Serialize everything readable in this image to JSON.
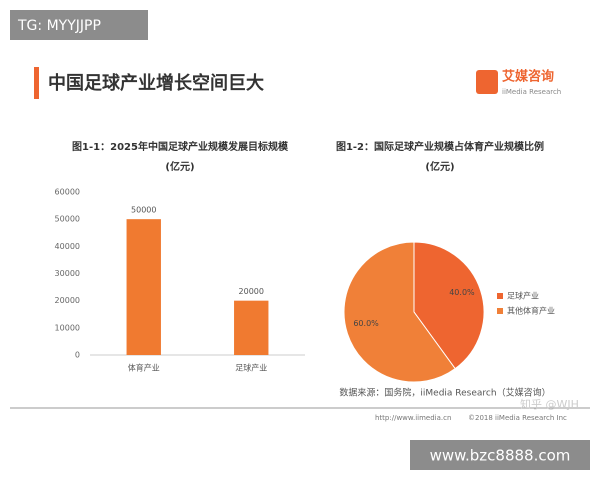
{
  "header": {
    "watermark": "TG: MYYJJPP",
    "title": "中国足球产业增长空间巨大",
    "logo_cn": "艾媒咨询",
    "logo_en": "iiMedia Research"
  },
  "chart_data": [
    {
      "type": "bar",
      "title": "图1-1：2025年中国足球产业规模发展目标规模",
      "subtitle": "(亿元)",
      "categories": [
        "体育产业",
        "足球产业"
      ],
      "values": [
        50000,
        20000
      ],
      "color": "#f07a30",
      "ylim": [
        0,
        60000
      ],
      "yticks": [
        0,
        10000,
        20000,
        30000,
        40000,
        50000,
        60000
      ],
      "grid": false
    },
    {
      "type": "pie",
      "title": "图1-2：国际足球产业规模占体育产业规模比例",
      "subtitle": "(亿元)",
      "categories": [
        "足球产业",
        "其他体育产业"
      ],
      "values": [
        40,
        60
      ],
      "value_labels": [
        "40.0%",
        "60.0%"
      ],
      "colors": [
        "#ee6530",
        "#f08038"
      ],
      "legend": "right"
    }
  ],
  "footer": {
    "source": "数据来源：国务院，iiMedia Research（艾媒咨询）",
    "url": "http://www.iimedia.cn",
    "copyright": "©2018 iiMedia Research Inc",
    "zhihu": "知乎 @WJH",
    "site": "www.bzc8888.com"
  }
}
